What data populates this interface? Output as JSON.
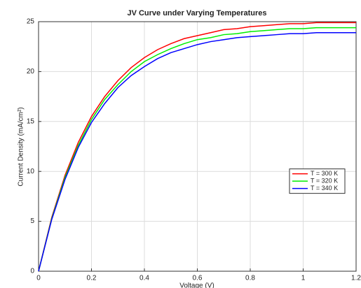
{
  "chart_data": {
    "type": "line",
    "title": "JV Curve under Varying Temperatures",
    "xlabel": "Voltage (V)",
    "ylabel": "Current Density (mA/cm²)",
    "x": [
      0,
      0.05,
      0.1,
      0.15,
      0.2,
      0.25,
      0.3,
      0.35,
      0.4,
      0.45,
      0.5,
      0.55,
      0.6,
      0.65,
      0.7,
      0.75,
      0.8,
      0.85,
      0.9,
      0.95,
      1.0,
      1.05,
      1.1,
      1.15,
      1.2
    ],
    "series": [
      {
        "name": "T = 300 K",
        "color": "#ff0000",
        "values": [
          0,
          5.4,
          9.6,
          12.9,
          15.5,
          17.5,
          19.1,
          20.4,
          21.4,
          22.2,
          22.8,
          23.3,
          23.6,
          23.9,
          24.2,
          24.3,
          24.5,
          24.6,
          24.7,
          24.8,
          24.8,
          24.9,
          24.9,
          24.9,
          24.9
        ]
      },
      {
        "name": "T = 320 K",
        "color": "#00ee00",
        "values": [
          0,
          5.3,
          9.4,
          12.6,
          15.2,
          17.2,
          18.7,
          20.0,
          21.0,
          21.7,
          22.3,
          22.8,
          23.2,
          23.4,
          23.7,
          23.8,
          24.0,
          24.1,
          24.2,
          24.3,
          24.3,
          24.4,
          24.4,
          24.4,
          24.4
        ]
      },
      {
        "name": "T = 340 K",
        "color": "#0000ff",
        "values": [
          0,
          5.2,
          9.2,
          12.4,
          14.9,
          16.8,
          18.4,
          19.6,
          20.5,
          21.3,
          21.9,
          22.3,
          22.7,
          23.0,
          23.2,
          23.4,
          23.5,
          23.6,
          23.7,
          23.8,
          23.8,
          23.9,
          23.9,
          23.9,
          23.9
        ]
      }
    ],
    "xlim": [
      0,
      1.2
    ],
    "xticks": [
      0,
      0.2,
      0.4,
      0.6,
      0.8,
      1,
      1.2
    ],
    "ylim": [
      0,
      25
    ],
    "yticks": [
      0,
      5,
      10,
      15,
      20,
      25
    ],
    "grid": true,
    "legend": "right"
  }
}
